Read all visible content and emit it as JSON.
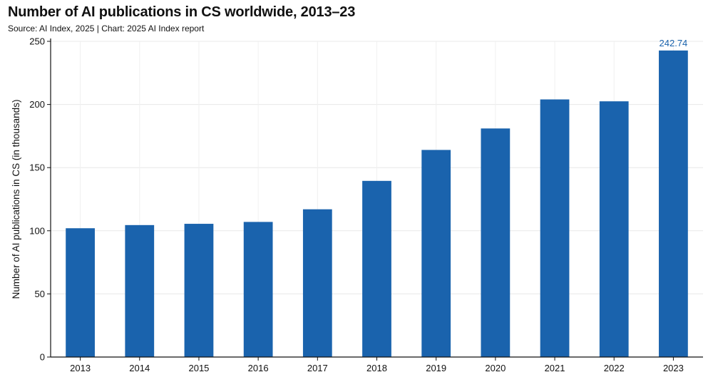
{
  "chart_data": {
    "type": "bar",
    "title": "Number of AI publications in CS worldwide, 2013–23",
    "subtitle": "Source: AI Index, 2025 | Chart: 2025 AI Index report",
    "xlabel": "",
    "ylabel": "Number of AI publications in CS (in thousands)",
    "categories": [
      "2013",
      "2014",
      "2015",
      "2016",
      "2017",
      "2018",
      "2019",
      "2020",
      "2021",
      "2022",
      "2023"
    ],
    "values": [
      102,
      104.5,
      105.5,
      107,
      117,
      139.5,
      164,
      181,
      204,
      202.5,
      242.74
    ],
    "ylim": [
      0,
      250
    ],
    "yticks": [
      0,
      50,
      100,
      150,
      200,
      250
    ],
    "data_labels": [
      {
        "category": "2023",
        "text": "242.74"
      }
    ],
    "grid": true,
    "legend": "none",
    "bar_color": "#1a63ad",
    "label_color": "#1a63ad"
  }
}
